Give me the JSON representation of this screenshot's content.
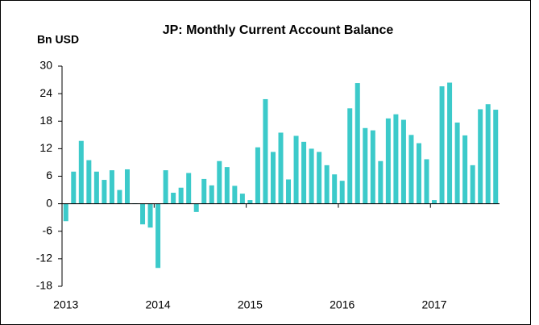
{
  "chart_data": {
    "type": "bar",
    "title": "JP: Monthly Current Account Balance",
    "y_label": "Bn USD",
    "categories": [
      "2013",
      null,
      null,
      null,
      null,
      null,
      null,
      null,
      null,
      null,
      null,
      null,
      "2014",
      null,
      null,
      null,
      null,
      null,
      null,
      null,
      null,
      null,
      null,
      null,
      "2015",
      null,
      null,
      null,
      null,
      null,
      null,
      null,
      null,
      null,
      null,
      null,
      "2016",
      null,
      null,
      null,
      null,
      null,
      null,
      null,
      null,
      null,
      null,
      null,
      "2017",
      null,
      null,
      null,
      null,
      null,
      null,
      null,
      null
    ],
    "values": [
      -3.8,
      7,
      13.7,
      9.5,
      7,
      5.2,
      7.3,
      3,
      7.5,
      0.1,
      -4.5,
      -5.2,
      -14,
      7.3,
      2.4,
      3.5,
      6.7,
      -1.8,
      5.4,
      4,
      9.3,
      8,
      3.9,
      2.2,
      0.8,
      12.3,
      22.8,
      11.3,
      15.5,
      5.3,
      14.8,
      13.5,
      12,
      11.3,
      8.4,
      6.4,
      5,
      20.8,
      26.3,
      16.5,
      16,
      9.3,
      18.6,
      19.5,
      18.3,
      15,
      13.2,
      9.7,
      0.8,
      25.6,
      26.4,
      17.7,
      14.9,
      8.4,
      20.6,
      21.7,
      20.5
    ],
    "color": "#3ccaca",
    "ylim": [
      -18,
      30
    ],
    "yticks": [
      -18,
      -12,
      -6,
      0,
      6,
      12,
      18,
      24,
      30
    ]
  }
}
